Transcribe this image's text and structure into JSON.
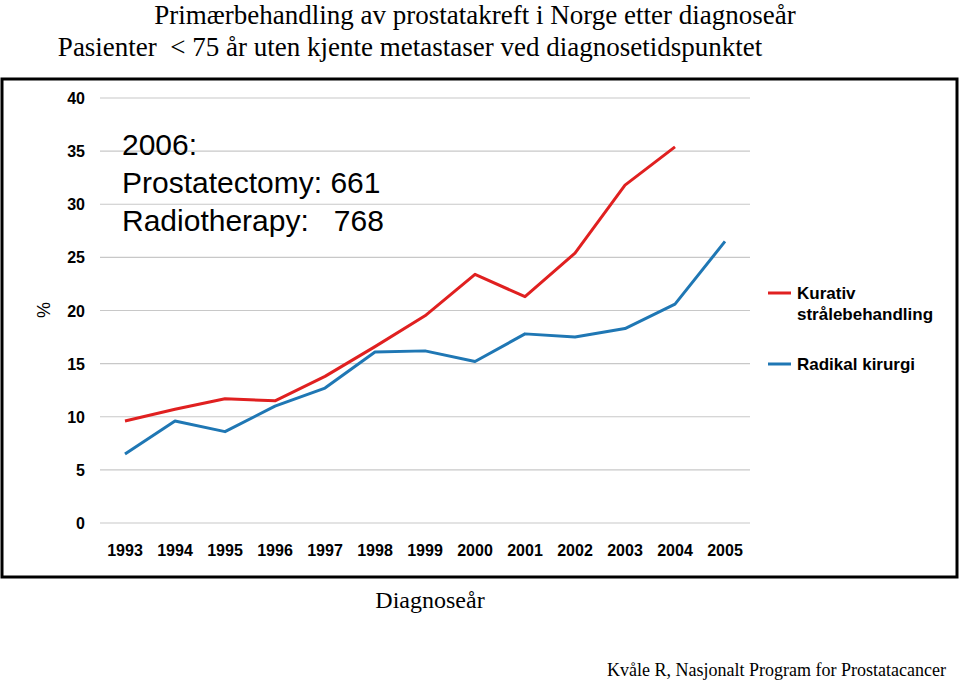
{
  "chart_data": {
    "type": "line",
    "title": "Primærbehandling av prostatakreft i Norge etter diagnoseår",
    "subtitle": "Pasienter  < 75 år uten kjente metastaser ved diagnosetidspunktet",
    "x_label": "Diagnoseår",
    "y_label": "%",
    "annotations": [
      "2006:",
      "Prostatectomy: 661",
      "Radiotherapy:   768"
    ],
    "source": "Kvåle R, Nasjonalt Program for Prostatacancer",
    "categories": [
      "1993",
      "1994",
      "1995",
      "1996",
      "1997",
      "1998",
      "1999",
      "2000",
      "2001",
      "2002",
      "2003",
      "2004",
      "2005"
    ],
    "series": [
      {
        "name": "Kurativ strålebehandling",
        "color": "#e02020",
        "values": [
          9.6,
          10.7,
          11.7,
          11.5,
          13.8,
          16.6,
          19.5,
          23.4,
          21.3,
          25.4,
          31.8,
          35.4,
          null
        ]
      },
      {
        "name": "Radikal kirurgi",
        "color": "#1f77b4",
        "values": [
          6.5,
          9.6,
          8.6,
          11.0,
          12.7,
          16.1,
          16.2,
          15.2,
          17.8,
          17.5,
          18.3,
          20.6,
          26.5
        ]
      }
    ],
    "ylim": [
      0,
      40
    ],
    "yticks": [
      0,
      5,
      10,
      15,
      20,
      25,
      30,
      35,
      40
    ],
    "grid": true,
    "legend": "right"
  }
}
